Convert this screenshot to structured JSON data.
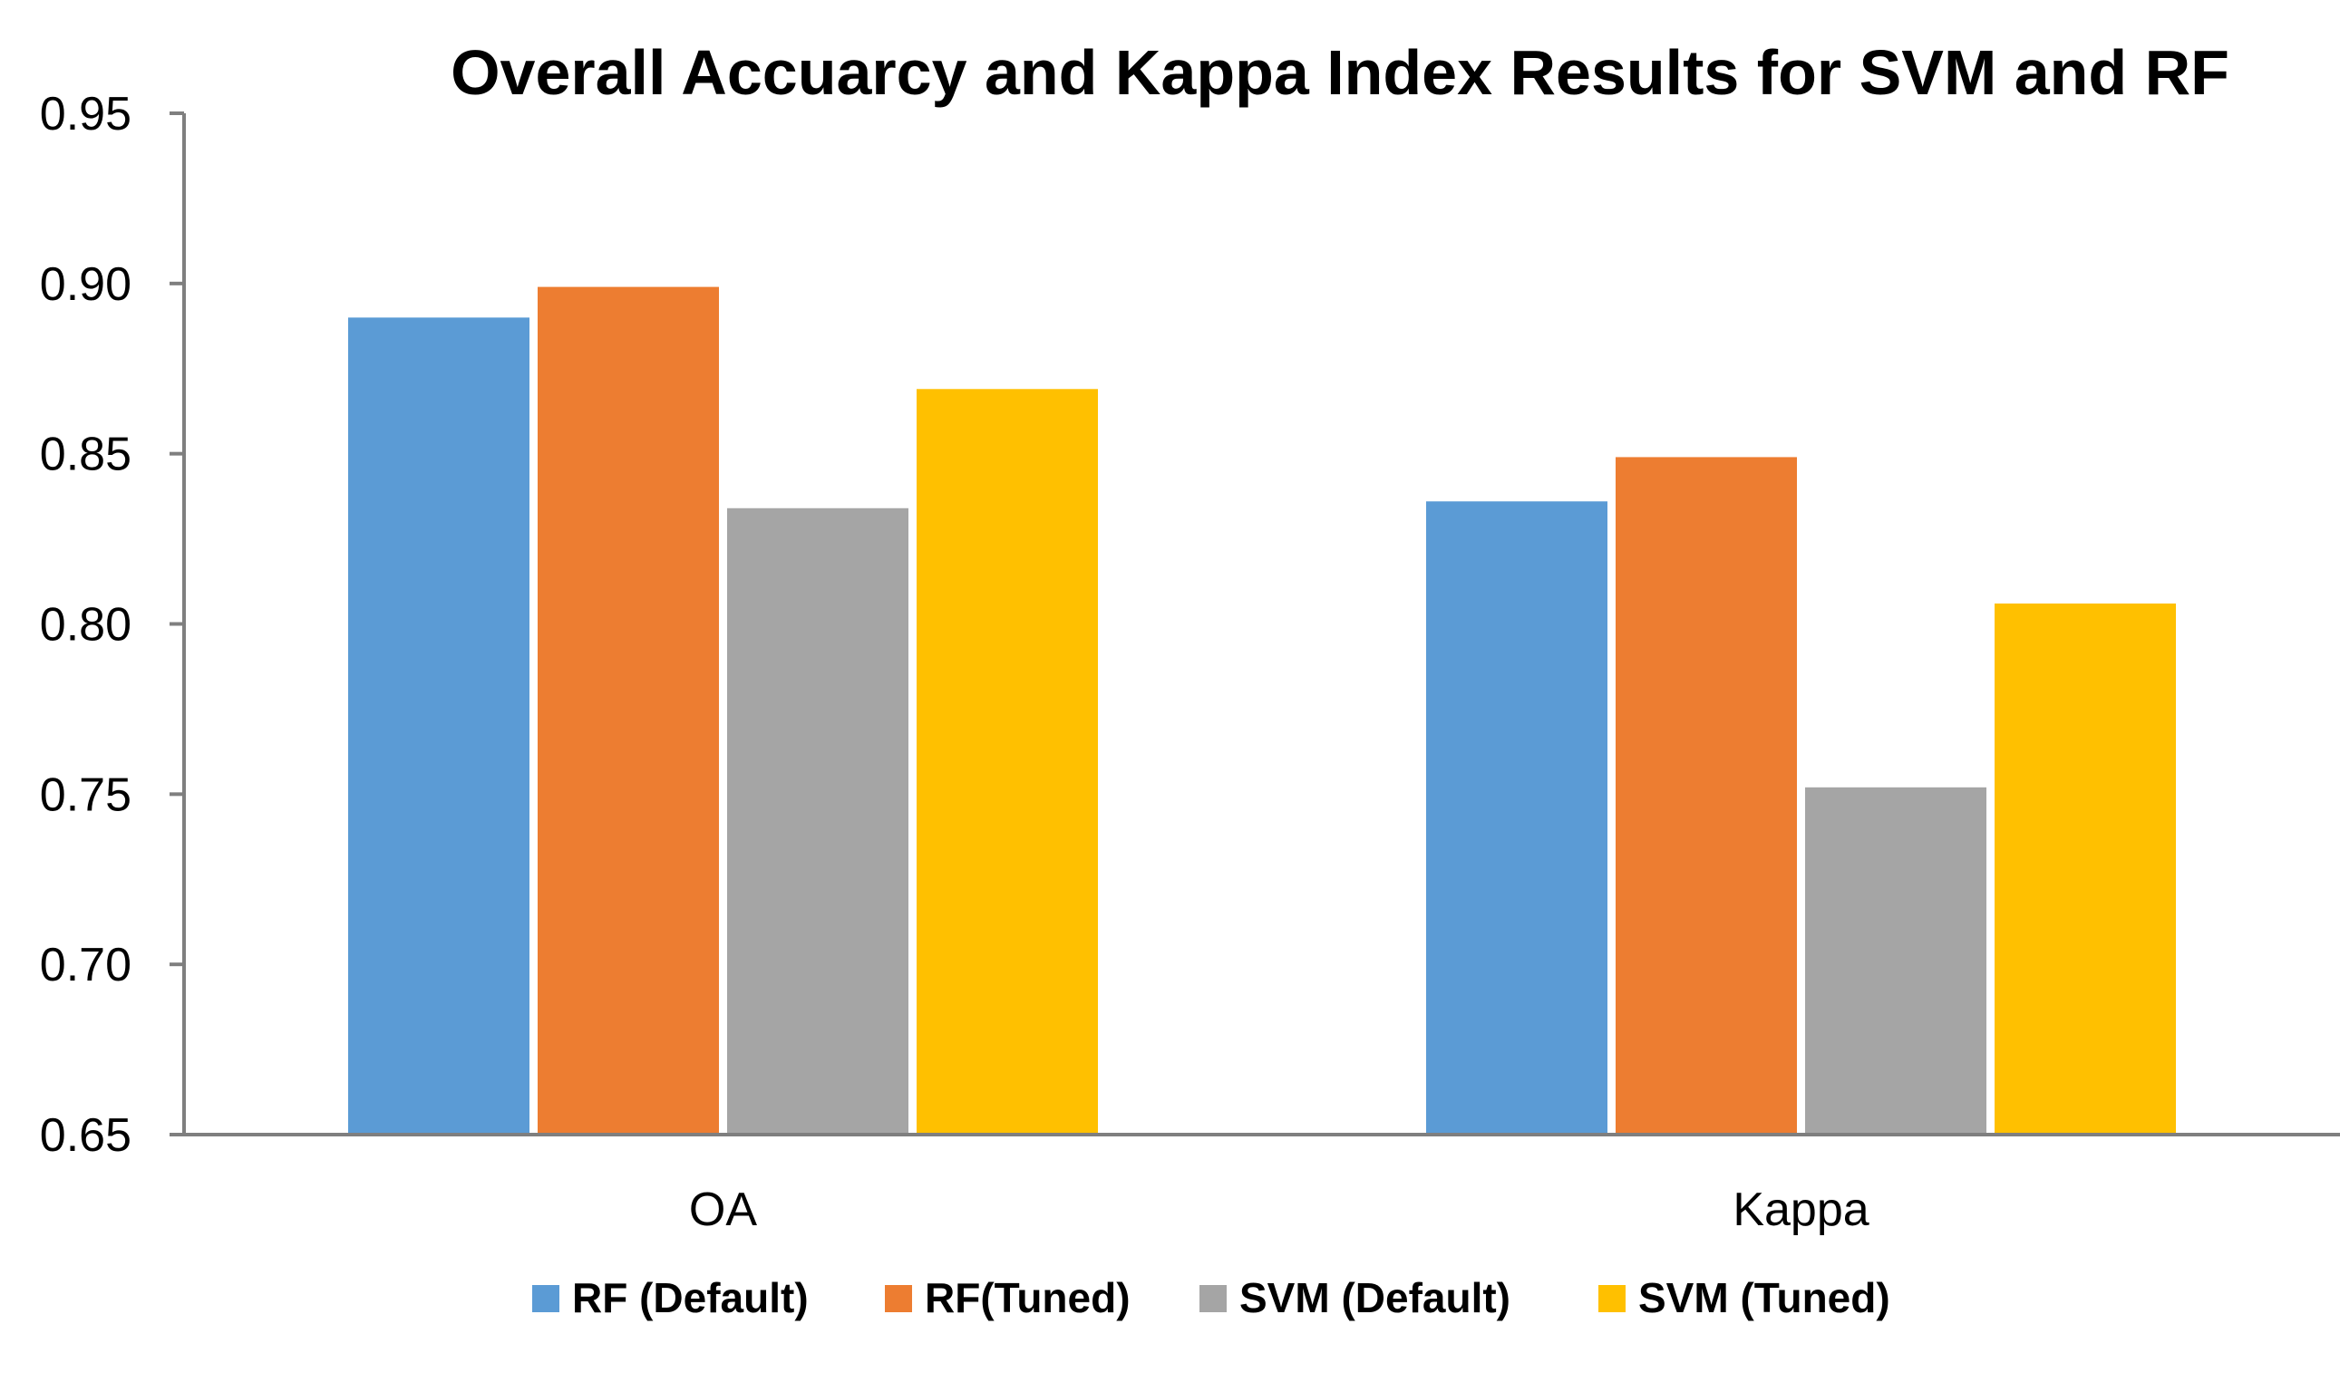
{
  "chart_data": {
    "type": "bar",
    "title": "Overall Accuarcy and Kappa Index Results for SVM and RF",
    "xlabel": "",
    "ylabel": "",
    "categories": [
      "OA",
      "Kappa"
    ],
    "series": [
      {
        "name": "RF (Default)",
        "color": "#5B9BD5",
        "values": [
          0.89,
          0.836
        ]
      },
      {
        "name": "RF(Tuned)",
        "color": "#ED7D31",
        "values": [
          0.899,
          0.849
        ]
      },
      {
        "name": "SVM (Default)",
        "color": "#A5A5A5",
        "values": [
          0.834,
          0.752
        ]
      },
      {
        "name": "SVM (Tuned)",
        "color": "#FFC000",
        "values": [
          0.869,
          0.806
        ]
      }
    ],
    "ylim": [
      0.65,
      0.95
    ],
    "yticks": [
      "0.65",
      "0.70",
      "0.75",
      "0.80",
      "0.85",
      "0.90",
      "0.95"
    ],
    "grid": false,
    "legend_position": "bottom"
  }
}
